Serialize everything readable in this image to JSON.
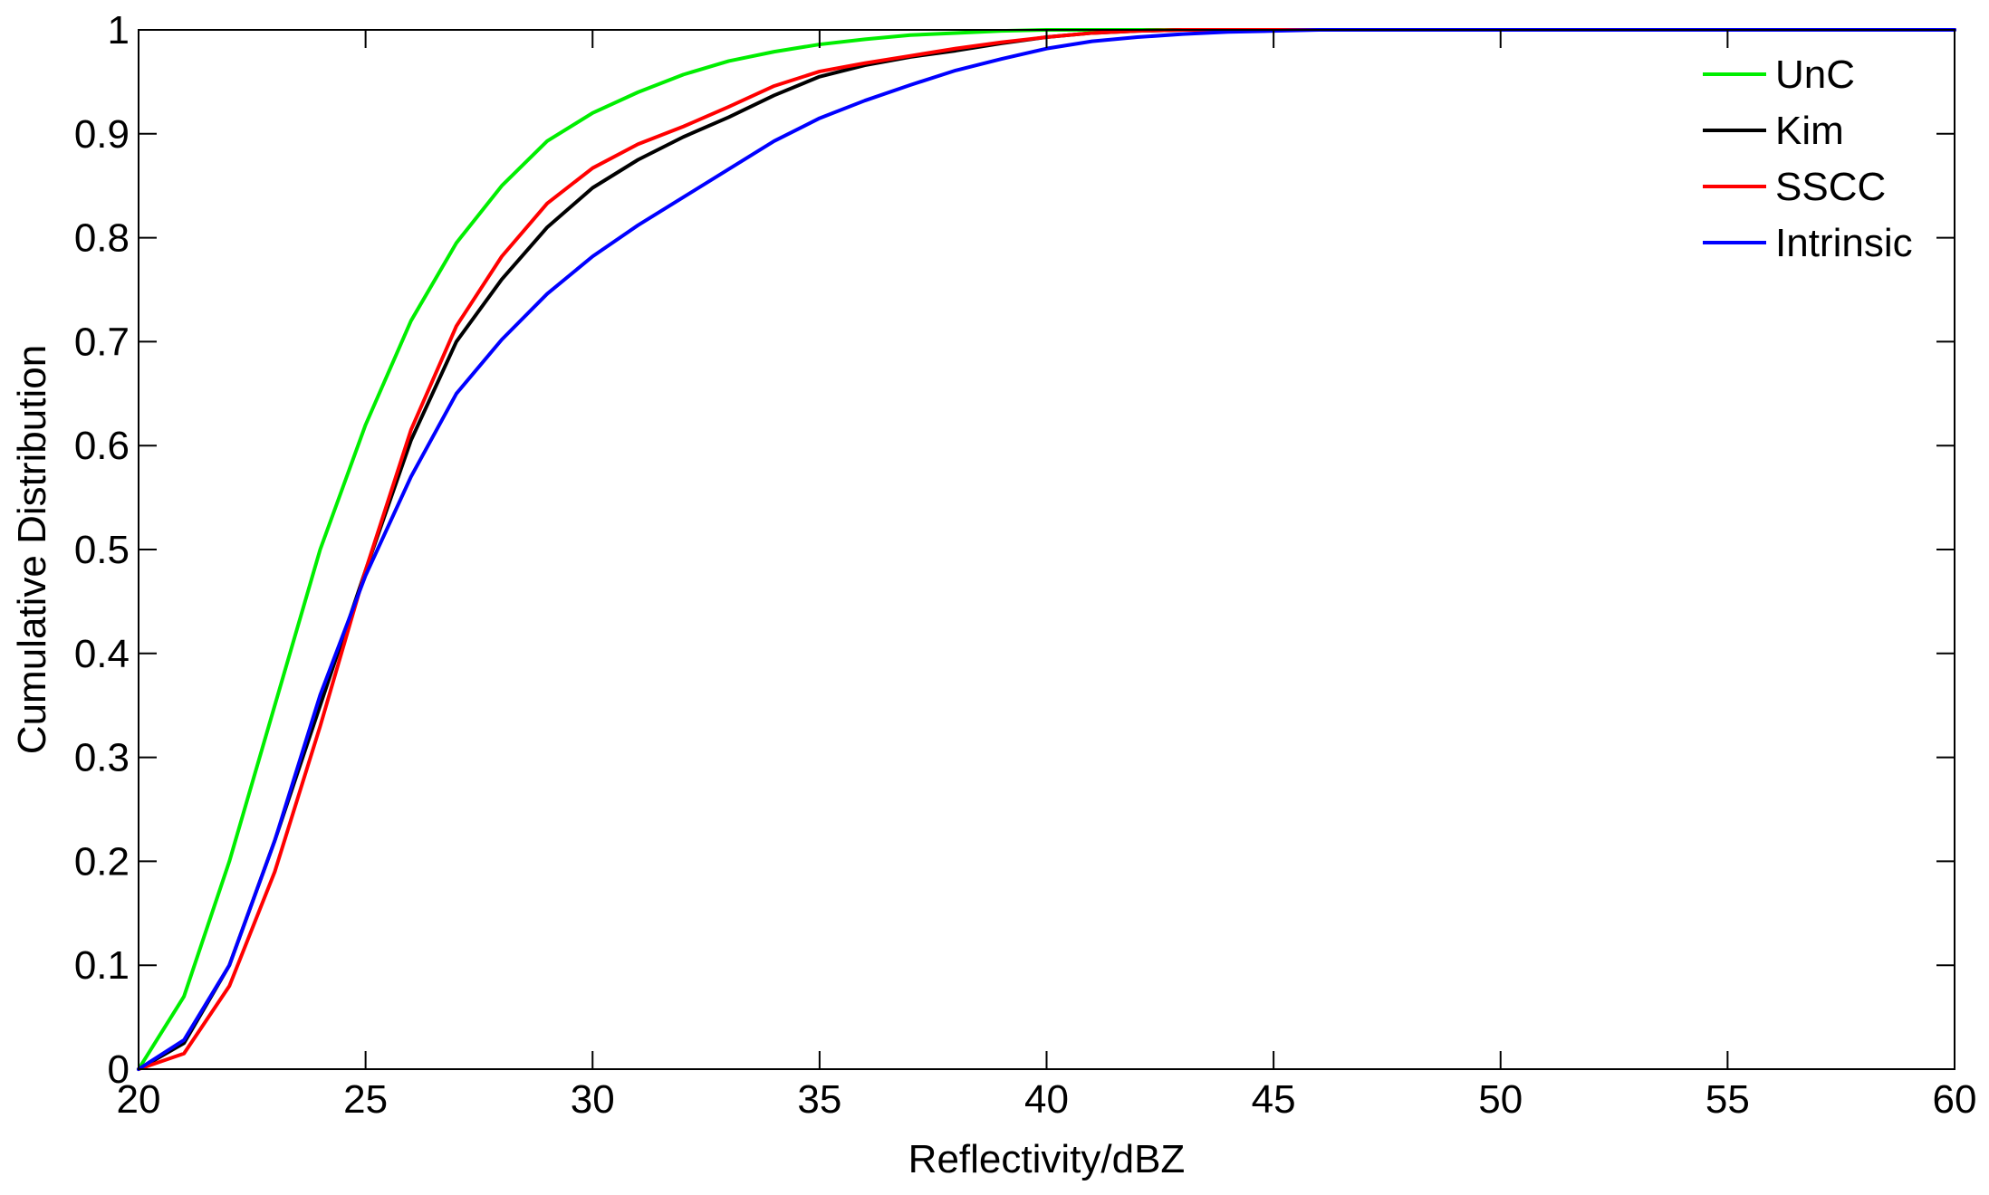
{
  "chart_data": {
    "type": "line",
    "title": "",
    "xlabel": "Reflectivity/dBZ",
    "ylabel": "Cumulative Distribution",
    "xlim": [
      20,
      60
    ],
    "ylim": [
      0,
      1
    ],
    "xticks": [
      20,
      25,
      30,
      35,
      40,
      45,
      50,
      55,
      60
    ],
    "yticks": [
      0,
      0.1,
      0.2,
      0.3,
      0.4,
      0.5,
      0.6,
      0.7,
      0.8,
      0.9,
      1
    ],
    "ytick_labels": [
      "0",
      "0.1",
      "0.2",
      "0.3",
      "0.4",
      "0.5",
      "0.6",
      "0.7",
      "0.8",
      "0.9",
      "1"
    ],
    "grid": false,
    "legend": "top-right",
    "x": [
      20,
      21,
      22,
      23,
      24,
      25,
      26,
      27,
      28,
      29,
      30,
      31,
      32,
      33,
      34,
      35,
      36,
      37,
      38,
      39,
      40,
      41,
      42,
      43,
      44,
      45,
      46,
      47,
      48,
      49,
      50,
      51,
      52,
      53,
      54,
      55,
      56,
      57,
      58,
      59,
      60
    ],
    "series": [
      {
        "name": "UnC",
        "color": "#00ee00",
        "values": [
          0,
          0.07,
          0.2,
          0.35,
          0.5,
          0.62,
          0.72,
          0.795,
          0.85,
          0.893,
          0.92,
          0.94,
          0.957,
          0.97,
          0.979,
          0.986,
          0.991,
          0.995,
          0.997,
          0.999,
          1,
          1,
          1,
          1,
          1,
          1,
          1,
          1,
          1,
          1,
          1,
          1,
          1,
          1,
          1,
          1,
          1,
          1,
          1,
          1,
          1
        ]
      },
      {
        "name": "Kim",
        "color": "#000000",
        "values": [
          0,
          0.025,
          0.1,
          0.22,
          0.35,
          0.48,
          0.605,
          0.7,
          0.76,
          0.81,
          0.848,
          0.875,
          0.897,
          0.916,
          0.937,
          0.955,
          0.966,
          0.974,
          0.98,
          0.987,
          0.993,
          0.997,
          0.999,
          1,
          1,
          1,
          1,
          1,
          1,
          1,
          1,
          1,
          1,
          1,
          1,
          1,
          1,
          1,
          1,
          1,
          1
        ]
      },
      {
        "name": "SSCC",
        "color": "#ff0000",
        "values": [
          0,
          0.015,
          0.08,
          0.19,
          0.33,
          0.48,
          0.615,
          0.715,
          0.782,
          0.833,
          0.867,
          0.89,
          0.907,
          0.926,
          0.946,
          0.96,
          0.968,
          0.975,
          0.982,
          0.988,
          0.993,
          0.997,
          0.999,
          1,
          1,
          1,
          1,
          1,
          1,
          1,
          1,
          1,
          1,
          1,
          1,
          1,
          1,
          1,
          1,
          1,
          1
        ]
      },
      {
        "name": "Intrinsic",
        "color": "#0000ff",
        "values": [
          0,
          0.028,
          0.1,
          0.22,
          0.36,
          0.475,
          0.57,
          0.65,
          0.702,
          0.746,
          0.782,
          0.812,
          0.839,
          0.866,
          0.893,
          0.915,
          0.932,
          0.947,
          0.961,
          0.972,
          0.982,
          0.989,
          0.993,
          0.996,
          0.998,
          0.999,
          1,
          1,
          1,
          1,
          1,
          1,
          1,
          1,
          1,
          1,
          1,
          1,
          1,
          1,
          1
        ]
      }
    ]
  }
}
